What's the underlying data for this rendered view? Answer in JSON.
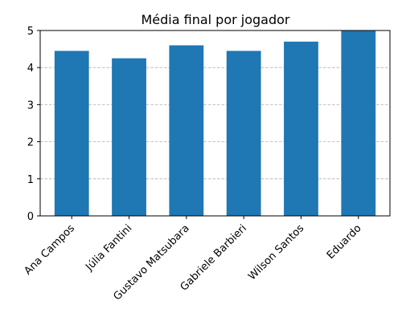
{
  "chart_data": {
    "type": "bar",
    "title": "Média final por jogador",
    "xlabel": "",
    "ylabel": "",
    "categories": [
      "Ana Campos",
      "Júlia Fantini",
      "Gustavo Matsubara",
      "Gabriele Barbieri",
      "Wilson Santos",
      "Eduardo"
    ],
    "values": [
      4.45,
      4.25,
      4.6,
      4.45,
      4.7,
      5.0
    ],
    "ylim": [
      0,
      5
    ],
    "yticks": [
      0,
      1,
      2,
      3,
      4,
      5
    ],
    "grid": "horizontal-dashed",
    "bar_color": "#1f77b4"
  }
}
